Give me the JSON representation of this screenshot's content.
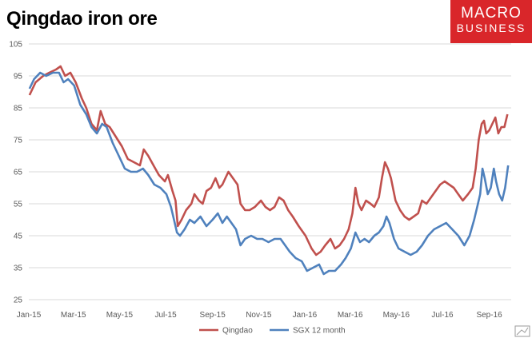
{
  "title": "Qingdao iron ore",
  "logo": {
    "line1": "MACRO",
    "line2": "BUSINESS"
  },
  "colors": {
    "Qingdao": "#c0504d",
    "SGX 12 month": "#4f81bd",
    "grid": "#d9d9d9"
  },
  "chart_data": {
    "type": "line",
    "title": "Qingdao iron ore",
    "ylim": [
      25,
      105
    ],
    "yticks": [
      25,
      35,
      45,
      55,
      65,
      75,
      85,
      95,
      105
    ],
    "xticks": [
      "Jan-15",
      "Mar-15",
      "May-15",
      "Jul-15",
      "Sep-15",
      "Nov-15",
      "Jan-16",
      "Mar-16",
      "May-16",
      "Jul-16",
      "Sep-16"
    ],
    "x_range": [
      "2015-01-01",
      "2016-09-30"
    ],
    "grid": true,
    "legend": "bottom",
    "series": [
      {
        "name": "Qingdao",
        "points": [
          [
            "2015-01-02",
            89
          ],
          [
            "2015-01-10",
            93
          ],
          [
            "2015-01-20",
            95
          ],
          [
            "2015-01-28",
            96
          ],
          [
            "2015-02-06",
            97
          ],
          [
            "2015-02-12",
            98
          ],
          [
            "2015-02-18",
            95
          ],
          [
            "2015-02-25",
            96
          ],
          [
            "2015-03-04",
            93
          ],
          [
            "2015-03-12",
            88
          ],
          [
            "2015-03-18",
            85
          ],
          [
            "2015-03-25",
            80
          ],
          [
            "2015-04-01",
            78
          ],
          [
            "2015-04-06",
            84
          ],
          [
            "2015-04-12",
            80
          ],
          [
            "2015-04-18",
            79
          ],
          [
            "2015-04-26",
            76
          ],
          [
            "2015-05-04",
            73
          ],
          [
            "2015-05-12",
            69
          ],
          [
            "2015-05-20",
            68
          ],
          [
            "2015-05-28",
            67
          ],
          [
            "2015-06-02",
            72
          ],
          [
            "2015-06-08",
            70
          ],
          [
            "2015-06-15",
            67
          ],
          [
            "2015-06-22",
            64
          ],
          [
            "2015-06-30",
            62
          ],
          [
            "2015-07-04",
            64
          ],
          [
            "2015-07-10",
            59
          ],
          [
            "2015-07-14",
            56
          ],
          [
            "2015-07-17",
            48
          ],
          [
            "2015-07-22",
            50
          ],
          [
            "2015-07-28",
            53
          ],
          [
            "2015-08-04",
            55
          ],
          [
            "2015-08-08",
            58
          ],
          [
            "2015-08-14",
            56
          ],
          [
            "2015-08-19",
            55
          ],
          [
            "2015-08-24",
            59
          ],
          [
            "2015-08-30",
            60
          ],
          [
            "2015-09-05",
            63
          ],
          [
            "2015-09-10",
            60
          ],
          [
            "2015-09-14",
            61
          ],
          [
            "2015-09-18",
            63
          ],
          [
            "2015-09-22",
            65
          ],
          [
            "2015-09-28",
            63
          ],
          [
            "2015-10-04",
            61
          ],
          [
            "2015-10-08",
            55
          ],
          [
            "2015-10-14",
            53
          ],
          [
            "2015-10-20",
            53
          ],
          [
            "2015-10-27",
            54
          ],
          [
            "2015-11-04",
            56
          ],
          [
            "2015-11-10",
            54
          ],
          [
            "2015-11-16",
            53
          ],
          [
            "2015-11-22",
            54
          ],
          [
            "2015-11-28",
            57
          ],
          [
            "2015-12-04",
            56
          ],
          [
            "2015-12-10",
            53
          ],
          [
            "2015-12-16",
            51
          ],
          [
            "2015-12-24",
            48
          ],
          [
            "2016-01-02",
            45
          ],
          [
            "2016-01-10",
            41
          ],
          [
            "2016-01-16",
            39
          ],
          [
            "2016-01-22",
            40
          ],
          [
            "2016-01-28",
            42
          ],
          [
            "2016-02-04",
            44
          ],
          [
            "2016-02-10",
            41
          ],
          [
            "2016-02-16",
            42
          ],
          [
            "2016-02-22",
            44
          ],
          [
            "2016-02-28",
            47
          ],
          [
            "2016-03-04",
            52
          ],
          [
            "2016-03-08",
            60
          ],
          [
            "2016-03-12",
            55
          ],
          [
            "2016-03-16",
            53
          ],
          [
            "2016-03-22",
            56
          ],
          [
            "2016-03-28",
            55
          ],
          [
            "2016-04-02",
            54
          ],
          [
            "2016-04-08",
            57
          ],
          [
            "2016-04-12",
            63
          ],
          [
            "2016-04-16",
            68
          ],
          [
            "2016-04-20",
            66
          ],
          [
            "2016-04-24",
            63
          ],
          [
            "2016-04-30",
            56
          ],
          [
            "2016-05-06",
            53
          ],
          [
            "2016-05-12",
            51
          ],
          [
            "2016-05-18",
            50
          ],
          [
            "2016-05-24",
            51
          ],
          [
            "2016-05-30",
            52
          ],
          [
            "2016-06-04",
            56
          ],
          [
            "2016-06-10",
            55
          ],
          [
            "2016-06-16",
            57
          ],
          [
            "2016-06-22",
            59
          ],
          [
            "2016-06-28",
            61
          ],
          [
            "2016-07-04",
            62
          ],
          [
            "2016-07-10",
            61
          ],
          [
            "2016-07-16",
            60
          ],
          [
            "2016-07-22",
            58
          ],
          [
            "2016-07-28",
            56
          ],
          [
            "2016-08-04",
            58
          ],
          [
            "2016-08-10",
            60
          ],
          [
            "2016-08-14",
            66
          ],
          [
            "2016-08-18",
            75
          ],
          [
            "2016-08-22",
            80
          ],
          [
            "2016-08-25",
            81
          ],
          [
            "2016-08-28",
            77
          ],
          [
            "2016-09-01",
            78
          ],
          [
            "2016-09-05",
            80
          ],
          [
            "2016-09-09",
            82
          ],
          [
            "2016-09-13",
            77
          ],
          [
            "2016-09-17",
            79
          ],
          [
            "2016-09-21",
            79
          ],
          [
            "2016-09-25",
            83
          ]
        ]
      },
      {
        "name": "SGX 12 month",
        "points": [
          [
            "2015-01-02",
            91
          ],
          [
            "2015-01-08",
            94
          ],
          [
            "2015-01-16",
            96
          ],
          [
            "2015-01-24",
            95
          ],
          [
            "2015-02-02",
            96
          ],
          [
            "2015-02-10",
            96
          ],
          [
            "2015-02-16",
            93
          ],
          [
            "2015-02-22",
            94
          ],
          [
            "2015-03-02",
            92
          ],
          [
            "2015-03-10",
            86
          ],
          [
            "2015-03-18",
            83
          ],
          [
            "2015-03-25",
            79
          ],
          [
            "2015-04-01",
            77
          ],
          [
            "2015-04-08",
            80
          ],
          [
            "2015-04-14",
            79
          ],
          [
            "2015-04-22",
            74
          ],
          [
            "2015-04-30",
            70
          ],
          [
            "2015-05-08",
            66
          ],
          [
            "2015-05-16",
            65
          ],
          [
            "2015-05-24",
            65
          ],
          [
            "2015-06-01",
            66
          ],
          [
            "2015-06-08",
            64
          ],
          [
            "2015-06-16",
            61
          ],
          [
            "2015-06-24",
            60
          ],
          [
            "2015-07-02",
            58
          ],
          [
            "2015-07-08",
            54
          ],
          [
            "2015-07-12",
            50
          ],
          [
            "2015-07-16",
            46
          ],
          [
            "2015-07-20",
            45
          ],
          [
            "2015-07-26",
            47
          ],
          [
            "2015-08-02",
            50
          ],
          [
            "2015-08-08",
            49
          ],
          [
            "2015-08-16",
            51
          ],
          [
            "2015-08-24",
            48
          ],
          [
            "2015-09-01",
            50
          ],
          [
            "2015-09-08",
            52
          ],
          [
            "2015-09-14",
            49
          ],
          [
            "2015-09-20",
            51
          ],
          [
            "2015-09-26",
            49
          ],
          [
            "2015-10-02",
            47
          ],
          [
            "2015-10-08",
            42
          ],
          [
            "2015-10-14",
            44
          ],
          [
            "2015-10-22",
            45
          ],
          [
            "2015-10-30",
            44
          ],
          [
            "2015-11-06",
            44
          ],
          [
            "2015-11-14",
            43
          ],
          [
            "2015-11-22",
            44
          ],
          [
            "2015-11-30",
            44
          ],
          [
            "2015-12-06",
            42
          ],
          [
            "2015-12-12",
            40
          ],
          [
            "2015-12-20",
            38
          ],
          [
            "2015-12-28",
            37
          ],
          [
            "2016-01-04",
            34
          ],
          [
            "2016-01-12",
            35
          ],
          [
            "2016-01-20",
            36
          ],
          [
            "2016-01-26",
            33
          ],
          [
            "2016-02-02",
            34
          ],
          [
            "2016-02-10",
            34
          ],
          [
            "2016-02-18",
            36
          ],
          [
            "2016-02-24",
            38
          ],
          [
            "2016-03-02",
            41
          ],
          [
            "2016-03-08",
            46
          ],
          [
            "2016-03-14",
            43
          ],
          [
            "2016-03-20",
            44
          ],
          [
            "2016-03-26",
            43
          ],
          [
            "2016-04-02",
            45
          ],
          [
            "2016-04-08",
            46
          ],
          [
            "2016-04-14",
            48
          ],
          [
            "2016-04-18",
            51
          ],
          [
            "2016-04-22",
            49
          ],
          [
            "2016-04-28",
            44
          ],
          [
            "2016-05-04",
            41
          ],
          [
            "2016-05-12",
            40
          ],
          [
            "2016-05-20",
            39
          ],
          [
            "2016-05-28",
            40
          ],
          [
            "2016-06-04",
            42
          ],
          [
            "2016-06-12",
            45
          ],
          [
            "2016-06-20",
            47
          ],
          [
            "2016-06-28",
            48
          ],
          [
            "2016-07-06",
            49
          ],
          [
            "2016-07-14",
            47
          ],
          [
            "2016-07-22",
            45
          ],
          [
            "2016-07-30",
            42
          ],
          [
            "2016-08-06",
            45
          ],
          [
            "2016-08-12",
            50
          ],
          [
            "2016-08-16",
            54
          ],
          [
            "2016-08-20",
            58
          ],
          [
            "2016-08-23",
            66
          ],
          [
            "2016-08-26",
            63
          ],
          [
            "2016-08-30",
            58
          ],
          [
            "2016-09-03",
            60
          ],
          [
            "2016-09-07",
            66
          ],
          [
            "2016-09-10",
            62
          ],
          [
            "2016-09-14",
            58
          ],
          [
            "2016-09-18",
            56
          ],
          [
            "2016-09-22",
            60
          ],
          [
            "2016-09-26",
            67
          ]
        ]
      }
    ]
  }
}
